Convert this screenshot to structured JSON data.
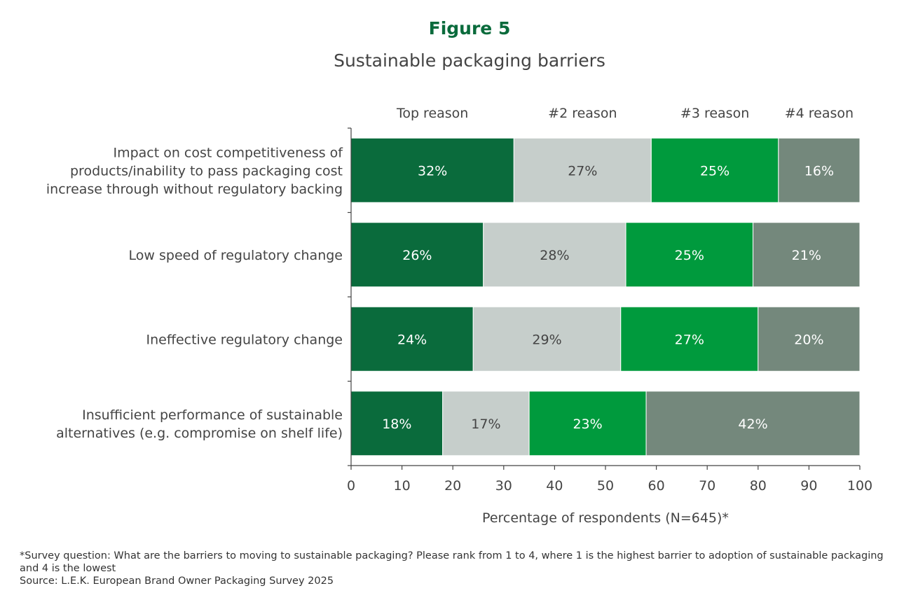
{
  "figure_label": "Figure 5",
  "chart_data": {
    "type": "bar",
    "orientation": "horizontal",
    "stacked": true,
    "title": "Sustainable packaging barriers",
    "categories": [
      [
        "Impact on cost competitiveness of",
        "products/inability to pass packaging cost",
        "increase through without regulatory backing"
      ],
      [
        "Low speed of regulatory change"
      ],
      [
        "Ineffective regulatory change"
      ],
      [
        "Insufficient performance of sustainable",
        "alternatives (e.g. compromise on shelf life)"
      ]
    ],
    "series": [
      {
        "name": "Top reason",
        "color": "#0a6b3c",
        "label_color": "#ffffff",
        "values": [
          32,
          26,
          24,
          18
        ]
      },
      {
        "name": "#2 reason",
        "color": "#c6cecb",
        "label_color": "#444444",
        "values": [
          27,
          28,
          29,
          17
        ]
      },
      {
        "name": "#3 reason",
        "color": "#009a3d",
        "label_color": "#ffffff",
        "values": [
          25,
          25,
          27,
          23
        ]
      },
      {
        "name": "#4 reason",
        "color": "#74887c",
        "label_color": "#ffffff",
        "values": [
          16,
          21,
          20,
          42
        ]
      }
    ],
    "data_label_suffix": "%",
    "xlabel": "Percentage of respondents (N=645)*",
    "xlim": [
      0,
      100
    ],
    "xticks": [
      0,
      10,
      20,
      30,
      40,
      50,
      60,
      70,
      80,
      90,
      100
    ],
    "grid": false,
    "legend_placement": "top"
  },
  "footnote": {
    "survey": "*Survey question: What are the barriers to moving to sustainable packaging? Please rank from 1 to 4, where 1 is the highest barrier to adoption of sustainable packaging and 4 is the lowest",
    "source": "Source: L.E.K. European Brand Owner Packaging Survey 2025"
  }
}
